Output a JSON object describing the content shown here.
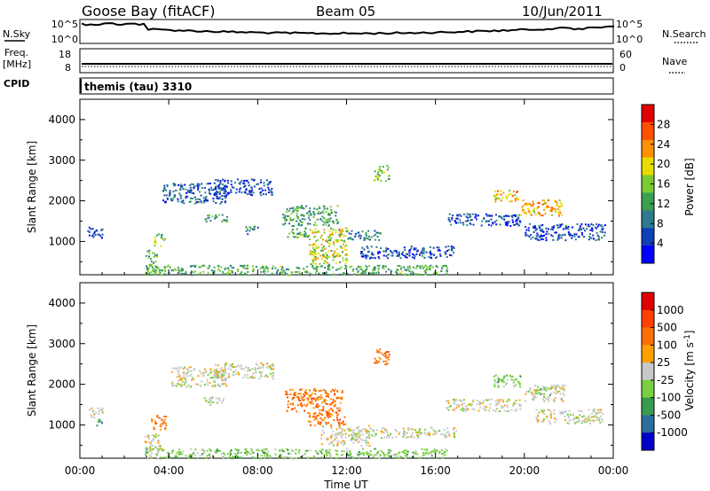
{
  "header": {
    "station": "Goose Bay (fitACF)",
    "beam": "Beam 05",
    "date": "10/Jun/2011"
  },
  "status_panels": {
    "nsky_label": "N.Sky",
    "nsearch_label": "N.Search",
    "freq_label_1": "Freq.",
    "freq_label_2": "[MHz]",
    "nave_label": "Nave",
    "cpid_label": "CPID",
    "cpid_text": "themis (tau) 3310",
    "noise_left_ticks": [
      "10^5",
      "10^0"
    ],
    "noise_right_ticks": [
      "10^5",
      "10^0"
    ],
    "freq_left_ticks": [
      "18",
      "8"
    ],
    "freq_right_ticks": [
      "60",
      "0"
    ]
  },
  "chart_data": [
    {
      "type": "heatmap",
      "name": "power",
      "ylabel": "Slant Range [km]",
      "xlabel": "",
      "colorbar_label": "Power [dB]",
      "ylim": [
        180,
        4500
      ],
      "xlim": [
        0,
        24
      ],
      "yticks": [
        "1000",
        "2000",
        "3000",
        "4000"
      ],
      "xticks": [
        "00:00",
        "04:00",
        "08:00",
        "12:00",
        "16:00",
        "20:00",
        "00:00"
      ],
      "colorbar_ticks": [
        "4",
        "8",
        "12",
        "16",
        "20",
        "24",
        "28"
      ],
      "colorbar_range": [
        0,
        32
      ],
      "colorbar_colors": [
        "#0000ff",
        "#1040b8",
        "#2e7a8e",
        "#3aa050",
        "#7acc30",
        "#e8dc00",
        "#ff9000",
        "#ff5000",
        "#e00000"
      ],
      "regions": [
        {
          "t0": 0.3,
          "t1": 1.0,
          "r0": 1100,
          "r1": 1400,
          "level": 6
        },
        {
          "t0": 2.9,
          "t1": 3.5,
          "r0": 250,
          "r1": 800,
          "level": 14
        },
        {
          "t0": 3.3,
          "t1": 3.8,
          "r0": 900,
          "r1": 1200,
          "level": 16
        },
        {
          "t0": 3.7,
          "t1": 6.6,
          "r0": 1950,
          "r1": 2450,
          "level": 7
        },
        {
          "t0": 6.0,
          "t1": 8.7,
          "r0": 2150,
          "r1": 2550,
          "level": 5
        },
        {
          "t0": 5.6,
          "t1": 6.6,
          "r0": 1500,
          "r1": 1700,
          "level": 12
        },
        {
          "t0": 7.4,
          "t1": 8.0,
          "r0": 1200,
          "r1": 1400,
          "level": 10
        },
        {
          "t0": 9.1,
          "t1": 11.6,
          "r0": 1400,
          "r1": 1900,
          "level": 12
        },
        {
          "t0": 9.3,
          "t1": 10.3,
          "r0": 1100,
          "r1": 1350,
          "level": 13
        },
        {
          "t0": 10.3,
          "t1": 12.0,
          "r0": 450,
          "r1": 1350,
          "level": 18
        },
        {
          "t0": 12.0,
          "t1": 13.5,
          "r0": 1050,
          "r1": 1300,
          "level": 8
        },
        {
          "t0": 13.2,
          "t1": 13.9,
          "r0": 2500,
          "r1": 2900,
          "level": 14
        },
        {
          "t0": 12.6,
          "t1": 16.8,
          "r0": 600,
          "r1": 900,
          "level": 6
        },
        {
          "t0": 16.4,
          "t1": 19.8,
          "r0": 1400,
          "r1": 1700,
          "level": 6
        },
        {
          "t0": 18.6,
          "t1": 19.7,
          "r0": 2000,
          "r1": 2300,
          "level": 21
        },
        {
          "t0": 19.8,
          "t1": 21.7,
          "r0": 1650,
          "r1": 2050,
          "level": 22
        },
        {
          "t0": 20.0,
          "t1": 23.6,
          "r0": 1050,
          "r1": 1450,
          "level": 6
        },
        {
          "t0": 2.9,
          "t1": 16.5,
          "r0": 190,
          "r1": 430,
          "level": 13
        }
      ]
    },
    {
      "type": "heatmap",
      "name": "velocity",
      "ylabel": "Slant Range [km]",
      "xlabel": "Time UT",
      "colorbar_label": "Velocity [m s^-1]",
      "ylim": [
        180,
        4500
      ],
      "xlim": [
        0,
        24
      ],
      "yticks": [
        "1000",
        "2000",
        "3000",
        "4000"
      ],
      "xticks": [
        "00:00",
        "04:00",
        "08:00",
        "12:00",
        "16:00",
        "20:00",
        "00:00"
      ],
      "colorbar_ticks": [
        "1000",
        "500",
        "100",
        "25",
        "-25",
        "-100",
        "-500",
        "-1000"
      ],
      "colorbar_colors": [
        "#0000cc",
        "#2b6e9c",
        "#3a9a4e",
        "#7ad040",
        "#c8c8c8",
        "#ffa000",
        "#ff7000",
        "#ff4000",
        "#e00000"
      ],
      "regions": [
        {
          "t0": 0.4,
          "t1": 1.0,
          "r0": 1200,
          "r1": 1450,
          "cat": 4
        },
        {
          "t0": 0.7,
          "t1": 1.0,
          "r0": 1000,
          "r1": 1150,
          "cat": 2
        },
        {
          "t0": 2.9,
          "t1": 3.6,
          "r0": 180,
          "r1": 800,
          "cat": 4
        },
        {
          "t0": 3.2,
          "t1": 3.9,
          "r0": 900,
          "r1": 1250,
          "cat": 6
        },
        {
          "t0": 4.1,
          "t1": 6.6,
          "r0": 1950,
          "r1": 2450,
          "cat": 4
        },
        {
          "t0": 6.0,
          "t1": 8.7,
          "r0": 2150,
          "r1": 2550,
          "cat": 4
        },
        {
          "t0": 5.5,
          "t1": 6.5,
          "r0": 1500,
          "r1": 1700,
          "cat": 4
        },
        {
          "t0": 9.2,
          "t1": 11.8,
          "r0": 1350,
          "r1": 1900,
          "cat": 6
        },
        {
          "t0": 10.2,
          "t1": 11.9,
          "r0": 1000,
          "r1": 1350,
          "cat": 6
        },
        {
          "t0": 10.8,
          "t1": 13.0,
          "r0": 500,
          "r1": 1000,
          "cat": 4
        },
        {
          "t0": 13.2,
          "t1": 13.9,
          "r0": 2500,
          "r1": 2900,
          "cat": 6
        },
        {
          "t0": 12.8,
          "t1": 16.9,
          "r0": 700,
          "r1": 950,
          "cat": 4
        },
        {
          "t0": 16.4,
          "t1": 19.8,
          "r0": 1350,
          "r1": 1650,
          "cat": 4
        },
        {
          "t0": 18.6,
          "t1": 19.9,
          "r0": 1950,
          "r1": 2250,
          "cat": 3
        },
        {
          "t0": 20.0,
          "t1": 21.8,
          "r0": 1600,
          "r1": 2000,
          "cat": 4
        },
        {
          "t0": 20.4,
          "t1": 21.2,
          "r0": 1750,
          "r1": 1950,
          "cat": 3
        },
        {
          "t0": 20.5,
          "t1": 23.5,
          "r0": 1050,
          "r1": 1400,
          "cat": 4
        },
        {
          "t0": 2.9,
          "t1": 16.5,
          "r0": 190,
          "r1": 430,
          "cat": 3
        }
      ]
    }
  ]
}
